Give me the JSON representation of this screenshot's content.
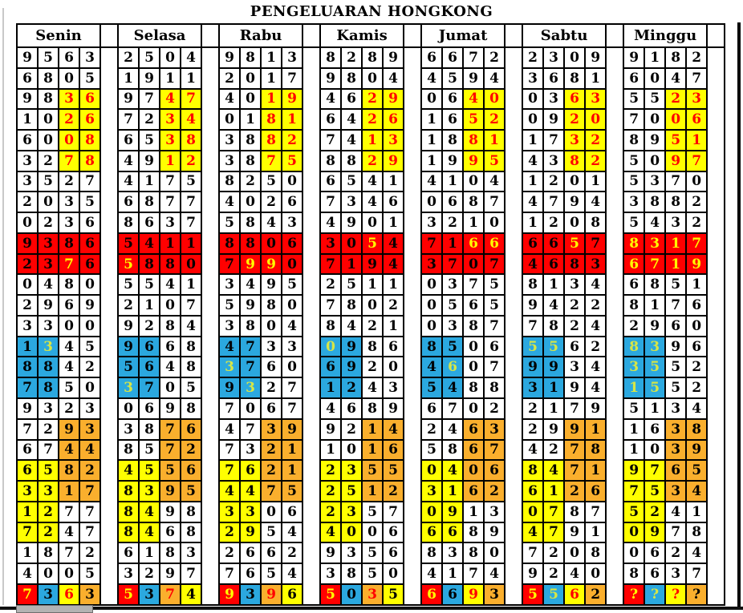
{
  "title": "PENGELUARAN HONGKONG",
  "columns": [
    "Senin",
    "Selasa",
    "Rabu",
    "Kamis",
    "Jumat",
    "Sabtu",
    "Minggu"
  ],
  "palette": {
    "cell_bg": {
      "w": "#FFFFFF",
      "y": "#FFFF00",
      "r": "#FF0000",
      "b": "#2BA8DF",
      "o": "#FAAF2D"
    },
    "cell_fg": {
      "k": "#000000",
      "r": "#FF0000",
      "y": "#FFFF00",
      "g": "#D7E646"
    },
    "border": "#000000"
  },
  "rows": [
    [
      "9563|wwww|kkkk",
      "2504|wwww|kkkk",
      "9813|wwww|kkkk",
      "8289|wwww|kkkk",
      "6672|wwww|kkkk",
      "2309|wwww|kkkk",
      "9182|wwww|kkkk"
    ],
    [
      "6805|wwww|kkkk",
      "1911|wwww|kkkk",
      "2017|wwww|kkkk",
      "9804|wwww|kkkk",
      "4594|wwww|kkkk",
      "3681|wwww|kkkk",
      "6047|wwww|kkkk"
    ],
    [
      "9836|wwyy|kkrr",
      "9747|wwyy|kkrr",
      "4019|wwyy|kkrr",
      "4629|wwyy|kkrr",
      "0640|wwyy|kkrr",
      "0363|wwyy|kkrr",
      "5523|wwyy|kkrr"
    ],
    [
      "1026|wwyy|kkrr",
      "7234|wwyy|kkrr",
      "0181|wwyy|kkrr",
      "6426|wwyy|kkrr",
      "1652|wwyy|kkrr",
      "0920|wwyy|kkrr",
      "7006|wwyy|kkrr"
    ],
    [
      "6008|wwyy|kkrr",
      "6538|wwyy|kkrr",
      "3882|wwyy|kkrr",
      "7413|wwyy|kkrr",
      "1881|wwyy|kkrr",
      "1732|wwyy|kkrr",
      "8951|wwyy|kkrr"
    ],
    [
      "3278|wwyy|kkrr",
      "4912|wwyy|kkrr",
      "3875|wwyy|kkrr",
      "8829|wwyy|kkrr",
      "1995|wwyy|kkrr",
      "4382|wwyy|kkrr",
      "5097|wwyy|kkrr"
    ],
    [
      "3527|wwww|kkkk",
      "4175|wwww|kkkk",
      "8250|wwww|kkkk",
      "6541|wwww|kkkk",
      "4104|wwww|kkkk",
      "1201|wwww|kkkk",
      "5370|wwww|kkkk"
    ],
    [
      "2035|wwww|kkkk",
      "6877|wwww|kkkk",
      "4026|wwww|kkkk",
      "7346|wwww|kkkk",
      "0687|wwww|kkkk",
      "4794|wwww|kkkk",
      "3882|wwww|kkkk"
    ],
    [
      "0236|wwww|kkkk",
      "8637|wwww|kkkk",
      "5843|wwww|kkkk",
      "4901|wwww|kkkk",
      "3210|wwww|kkkk",
      "1208|wwww|kkkk",
      "5432|wwww|kkkk"
    ],
    [
      "9386|rrrr|kkkk",
      "5411|rrrr|kkkk",
      "8806|rrrr|kkkk",
      "3054|rrrr|kkyk",
      "7166|rrrr|kkyy",
      "6657|rrrr|kkyk",
      "8317|rrrr|yyyy"
    ],
    [
      "2376|rrrr|kkyk",
      "5880|rrrr|ykkk",
      "7990|rrrr|kyyk",
      "7194|rrrr|kkkk",
      "3707|rrrr|kkkk",
      "4683|rrrr|kkkk",
      "6719|rrrr|yyyy"
    ],
    [
      "0480|wwww|kkkk",
      "5541|wwww|kkkk",
      "3495|wwww|kkkk",
      "2511|wwww|kkkk",
      "0375|wwww|kkkk",
      "8134|wwww|kkkk",
      "6851|wwww|kkkk"
    ],
    [
      "2969|wwww|kkkk",
      "2107|wwww|kkkk",
      "5980|wwww|kkkk",
      "7802|wwww|kkkk",
      "0565|wwww|kkkk",
      "9422|wwww|kkkk",
      "8176|wwww|kkkk"
    ],
    [
      "3300|wwww|kkkk",
      "9284|wwww|kkkk",
      "3804|wwww|kkkk",
      "8421|wwww|kkkk",
      "0387|wwww|kkkk",
      "7824|wwww|kkkk",
      "2960|wwww|kkkk"
    ],
    [
      "1345|bbww|kgkk",
      "9668|bbww|kkkk",
      "4733|bbww|kkkk",
      "0986|bbww|gkkk",
      "8506|bbww|kkkk",
      "5562|bbww|ggkk",
      "8396|bbww|ggkk"
    ],
    [
      "8842|bbww|kkkk",
      "5648|bbww|kkkk",
      "3760|bbww|gkkk",
      "6920|bbww|kkkk",
      "4607|bbww|kgkk",
      "9934|bbww|kkkk",
      "3552|bbww|ggkk"
    ],
    [
      "7850|bbww|kkkk",
      "3705|bbww|gkkk",
      "9327|bbww|kgkk",
      "1243|bbww|kkkk",
      "5488|bbww|kkkk",
      "3194|bbww|kkkk",
      "1552|bbww|ggkk"
    ],
    [
      "9323|wwww|kkkk",
      "0698|wwww|kkkk",
      "7067|wwww|kkkk",
      "4689|wwww|kkkk",
      "6702|wwww|kkkk",
      "2179|wwww|kkkk",
      "5134|wwww|kkkk"
    ],
    [
      "7293|wwoo|kkkk",
      "3876|wwoo|kkkk",
      "4739|wwoo|kkkk",
      "9214|wwoo|kkkk",
      "2463|wwoo|kkkk",
      "2991|wwoo|kkkk",
      "1638|wwoo|kkkk"
    ],
    [
      "6744|wwoo|kkkk",
      "8572|wwoo|kkkk",
      "7321|wwoo|kkkk",
      "1016|wwoo|kkkk",
      "5867|wwoo|kkkk",
      "4278|wwoo|kkkk",
      "1039|wwoo|kkkk"
    ],
    [
      "6582|yyoo|kkkk",
      "4556|yyoo|kkkk",
      "7621|yyoo|kkkk",
      "2355|yyoo|kkkk",
      "0406|yyoo|kkkk",
      "8471|yyoo|kkkk",
      "9765|yyoo|kkkk"
    ],
    [
      "3317|yyoo|kkkk",
      "8395|yyoo|kkkk",
      "4475|yyoo|kkkk",
      "2512|yyoo|kkkk",
      "3162|yyoo|kkkk",
      "6126|yyoo|kkkk",
      "7534|yyoo|kkkk"
    ],
    [
      "1277|yyww|kkkk",
      "8498|yyww|kkkk",
      "3306|yyww|kkkk",
      "2357|yyww|kkkk",
      "0913|yyww|kkkk",
      "0787|yyww|kkkk",
      "5241|yyww|kkkk"
    ],
    [
      "7247|yyww|kkkk",
      "8468|yyww|kkkk",
      "2954|yyww|kkkk",
      "4006|yyww|kkkk",
      "6689|yyww|kkkk",
      "4791|yyww|kkkk",
      "0978|yyww|kkkk"
    ],
    [
      "1872|wwww|kkkk",
      "6183|wwww|kkkk",
      "2662|wwww|kkkk",
      "9356|wwww|kkkk",
      "8380|wwww|kkkk",
      "7208|wwww|kkkk",
      "0624|wwww|kkkk"
    ],
    [
      "4005|wwww|kkkk",
      "3297|wwww|kkkk",
      "7654|wwww|kkkk",
      "3850|wwww|kkkk",
      "4174|wwww|kkkk",
      "9240|wwww|kkkk",
      "8637|wwww|kkkk"
    ],
    [
      "7363|rbyo|ykrk",
      "5374|rboy|ykrk",
      "9396|rboy|ykrk",
      "5035|rboy|ykrk",
      "6693|rbyo|ykrk",
      "5562|rbyo|ygrk",
      "????|rbyo|ygrk"
    ]
  ]
}
